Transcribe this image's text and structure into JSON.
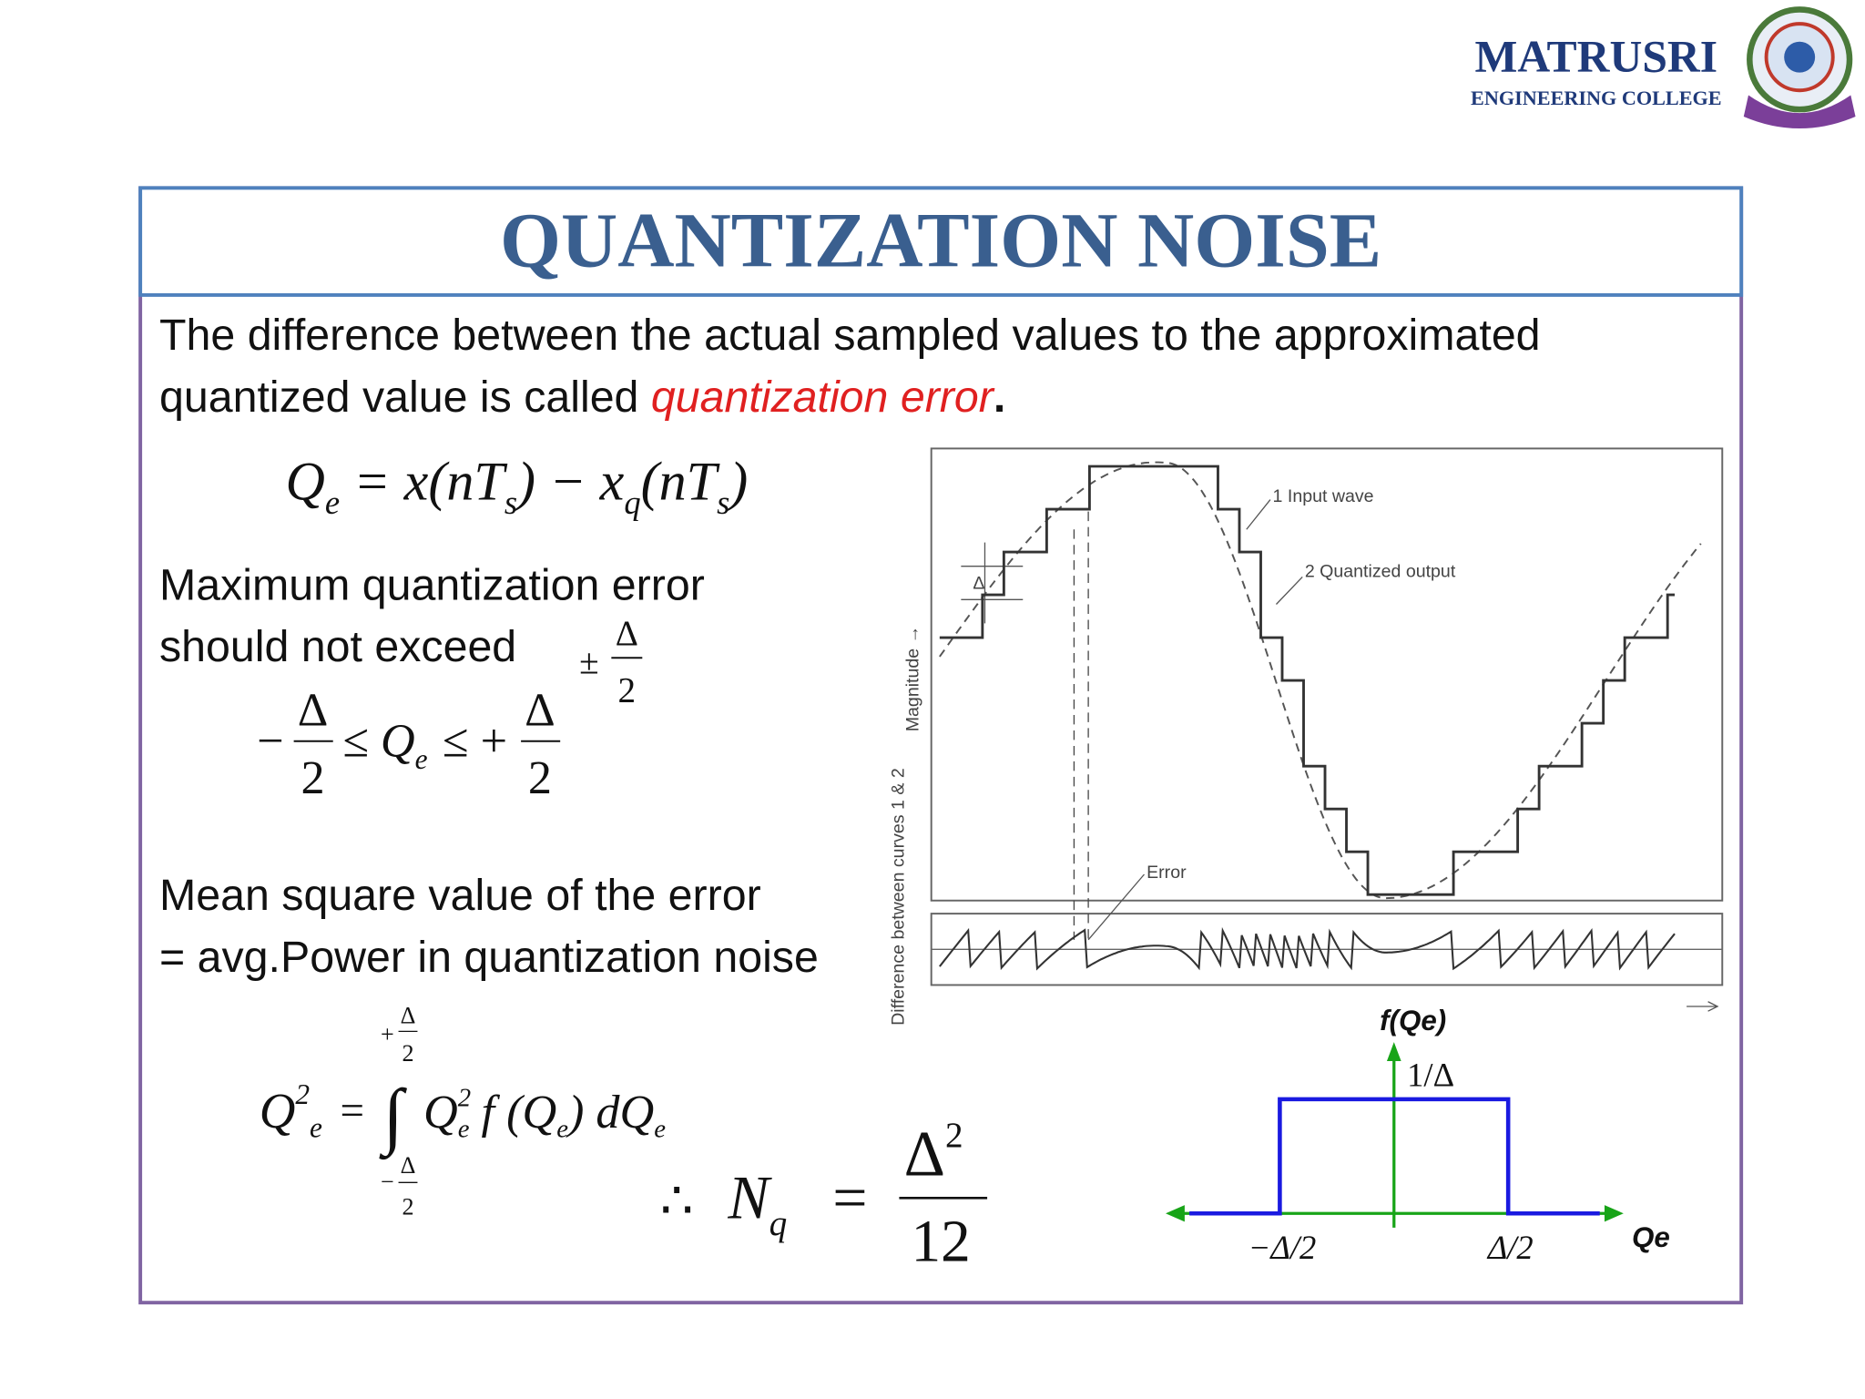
{
  "logo": {
    "name": "MATRUSRI",
    "subtitle": "ENGINEERING COLLEGE"
  },
  "title": "QUANTIZATION NOISE",
  "intro": {
    "line1": "The difference between the actual sampled values to the approximated",
    "line2": "quantized value is called ",
    "emphasis": "quantization error",
    "end": "."
  },
  "error_formula": {
    "q": "Q",
    "q_sub": "e",
    "mid": " = x(nT",
    "s1": "s",
    "minus": ") − x",
    "xq_sub": "q",
    "paren": "(nT",
    "s2": "s",
    "close": ")"
  },
  "max_error": {
    "line1": "Maximum quantization error",
    "line2": "should  not exceed"
  },
  "bound": {
    "sign": "±",
    "num": "Δ",
    "den": "2"
  },
  "inequality": {
    "left_sign": "−",
    "left_num": "Δ",
    "left_den": "2",
    "middle": "≤ Q",
    "middle_sub": "e",
    "right_sign": "≤ +",
    "right_num": "Δ",
    "right_den": "2"
  },
  "mean_square": {
    "line1": "Mean square value of the error",
    "line2": "= avg.Power in quantization noise"
  },
  "integral": {
    "lhs": "Q",
    "lhs_sup": "2",
    "lhs_sub": "e",
    "eq": "=",
    "symbol": "∫",
    "upper_sign": "+",
    "upper_num": "Δ",
    "upper_den": "2",
    "lower_sign": "−",
    "lower_num": "Δ",
    "lower_den": "2",
    "q": "Q",
    "q_sup": "2",
    "q_sub": "e",
    "f": " f (Q",
    "f_sub": "e",
    "dq": ") dQ",
    "dq_sub": "e"
  },
  "result": {
    "therefore": "∴",
    "lhs": "N",
    "lhs_sub": "q",
    "eq": "=",
    "num": "Δ",
    "num_sup": "2",
    "den": "12"
  },
  "waveform": {
    "input_label": "1 Input wave",
    "output_label": "2 Quantized output",
    "step_label": "Δ",
    "y_label": "Magnitude →",
    "error_label": "Error",
    "error_axis_label": "Difference between curves 1 & 2"
  },
  "pdf_plot": {
    "title": "f(Qe)",
    "height_label": "1/Δ",
    "left_label": "−Δ/2",
    "right_label": "Δ/2",
    "x_label": "Qe"
  }
}
